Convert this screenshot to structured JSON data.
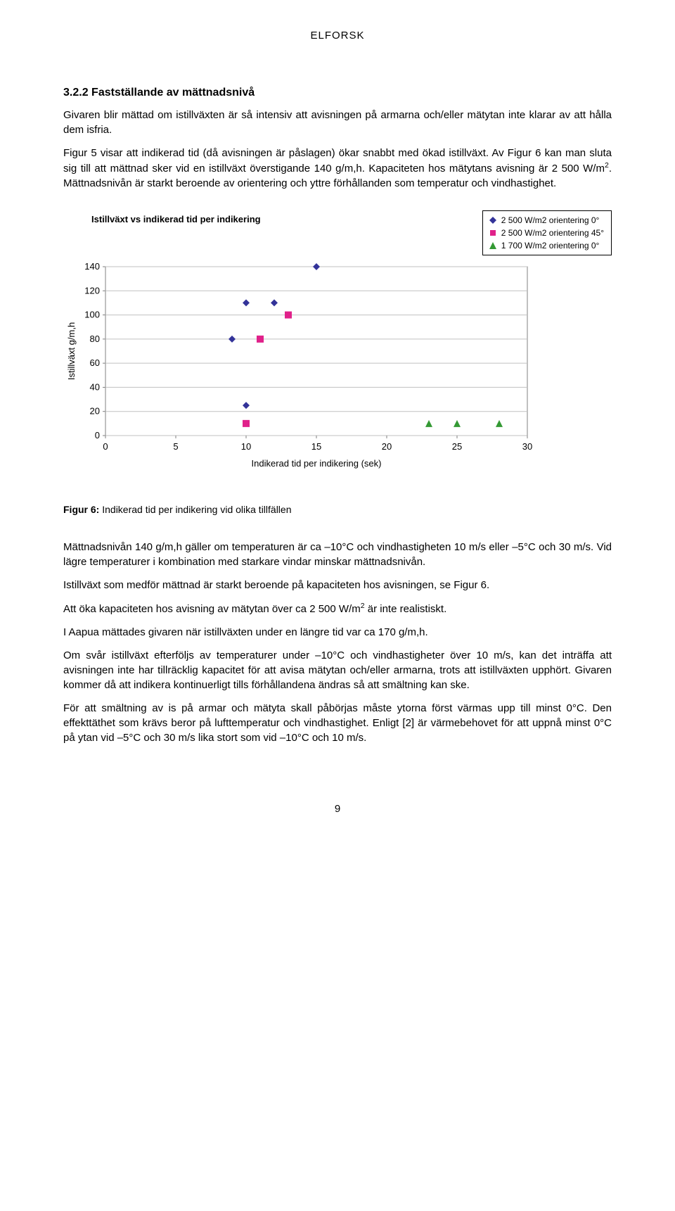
{
  "brand": "ELFORSK",
  "section_number": "3.2.2",
  "section_title": "Fastställande av mättnadsnivå",
  "para1": "Givaren blir mättad om istillväxten är så intensiv att avisningen på armarna och/eller mätytan inte klarar av att hålla dem isfria.",
  "para2_a": "Figur 5 visar att indikerad tid (då avisningen är påslagen) ökar snabbt med ökad istillväxt. Av Figur 6 kan man sluta sig till att mättnad sker vid en istillväxt överstigande 140 g/m,h. Kapaciteten hos mätytans avisning är 2 500 W/m",
  "para2_sup": "2",
  "para2_b": ". Mättnadsnivån är starkt beroende av orientering och yttre förhållanden som temperatur och vindhastighet.",
  "chart": {
    "title": "Istillväxt vs indikerad tid per indikering",
    "ylabel": "Istillväxt g/m,h",
    "xlabel": "Indikerad tid per indikering (sek)",
    "xlim": [
      0,
      30
    ],
    "xtick_step": 5,
    "ylim": [
      0,
      140
    ],
    "ytick_step": 20,
    "plot_bg": "#ffffff",
    "grid_color": "#c0c0c0",
    "axis_color": "#808080",
    "legend": [
      {
        "label": "2 500 W/m2 orientering 0°",
        "shape": "diamond",
        "color": "#333399"
      },
      {
        "label": "2 500 W/m2 orientering 45°",
        "shape": "square",
        "color": "#e0218a"
      },
      {
        "label": "1 700 W/m2 orientering 0°",
        "shape": "triangle",
        "color": "#339933"
      }
    ],
    "series": [
      {
        "shape": "diamond",
        "color": "#333399",
        "points": [
          [
            9,
            80
          ],
          [
            10,
            25
          ],
          [
            10,
            110
          ],
          [
            12,
            110
          ],
          [
            15,
            140
          ]
        ]
      },
      {
        "shape": "square",
        "color": "#e0218a",
        "points": [
          [
            10,
            10
          ],
          [
            11,
            80
          ],
          [
            13,
            100
          ]
        ]
      },
      {
        "shape": "triangle",
        "color": "#339933",
        "points": [
          [
            23,
            10
          ],
          [
            25,
            10
          ],
          [
            28,
            10
          ]
        ]
      }
    ]
  },
  "fig6_label": "Figur 6:",
  "fig6_text": " Indikerad tid per indikering vid olika tillfällen",
  "paraA": "Mättnadsnivån 140 g/m,h gäller om temperaturen är ca –10°C och vindhastigheten 10 m/s eller –5°C och 30 m/s. Vid lägre temperaturer i kombination med starkare vindar minskar mättnadsnivån.",
  "paraB": "Istillväxt som medför mättnad är starkt beroende på kapaciteten hos avisningen, se Figur 6.",
  "paraC_a": "Att öka kapaciteten hos avisning av mätytan över ca 2 500 W/m",
  "paraC_sup": "2",
  "paraC_b": " är inte realistiskt.",
  "paraD": "I Aapua mättades givaren när istillväxten under en längre tid var ca 170 g/m,h.",
  "paraE": "Om svår istillväxt efterföljs av temperaturer under –10°C och vindhastigheter över 10 m/s, kan det inträffa att avisningen inte har tillräcklig kapacitet för att avisa mätytan och/eller armarna, trots att istillväxten upphört. Givaren kommer då att indikera kontinuerligt tills förhållandena ändras så att smältning kan ske.",
  "paraF": "För att smältning av is på armar och mätyta skall påbörjas måste ytorna först värmas upp till minst 0°C. Den effekttäthet som krävs beror på lufttemperatur och vindhastighet. Enligt [2] är värmebehovet för att uppnå minst 0°C på ytan vid –5°C och 30 m/s lika stort som vid –10°C och 10 m/s.",
  "page_number": "9"
}
